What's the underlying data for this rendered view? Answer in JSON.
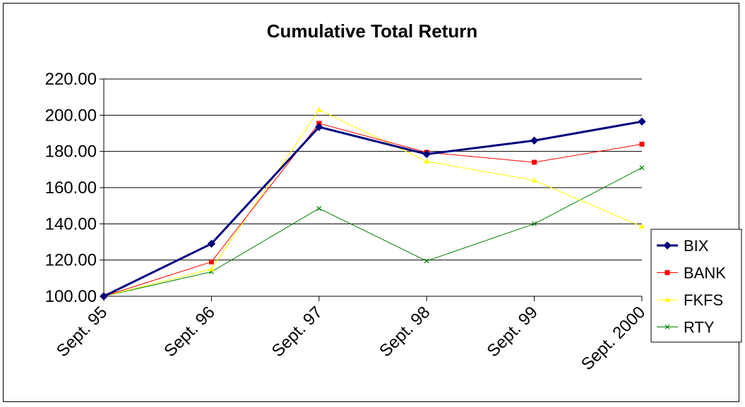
{
  "chart_data": {
    "type": "line",
    "title": "Cumulative Total Return",
    "xlabel": "",
    "ylabel": "",
    "categories": [
      "Sept. 95",
      "Sept. 96",
      "Sept. 97",
      "Sept. 98",
      "Sept. 99",
      "Sept. 2000"
    ],
    "y_ticks": [
      "100.00",
      "120.00",
      "140.00",
      "160.00",
      "180.00",
      "200.00",
      "220.00"
    ],
    "ylim": [
      100,
      220
    ],
    "grid": true,
    "legend_position": "right",
    "series": [
      {
        "name": "BIX",
        "color": "#00007f",
        "marker": "diamond",
        "values": [
          100,
          129,
          193.5,
          178.5,
          186,
          196.5
        ]
      },
      {
        "name": "BANK",
        "color": "#ff0000",
        "marker": "square",
        "values": [
          100,
          119,
          195.5,
          179.5,
          174,
          184
        ]
      },
      {
        "name": "FKFS",
        "color": "#ffff00",
        "marker": "triangle",
        "values": [
          100,
          115,
          203,
          174.5,
          164,
          138.5
        ]
      },
      {
        "name": "RTY",
        "color": "#008000",
        "marker": "x",
        "values": [
          100,
          113.5,
          148.5,
          119.5,
          140,
          171
        ]
      }
    ]
  }
}
